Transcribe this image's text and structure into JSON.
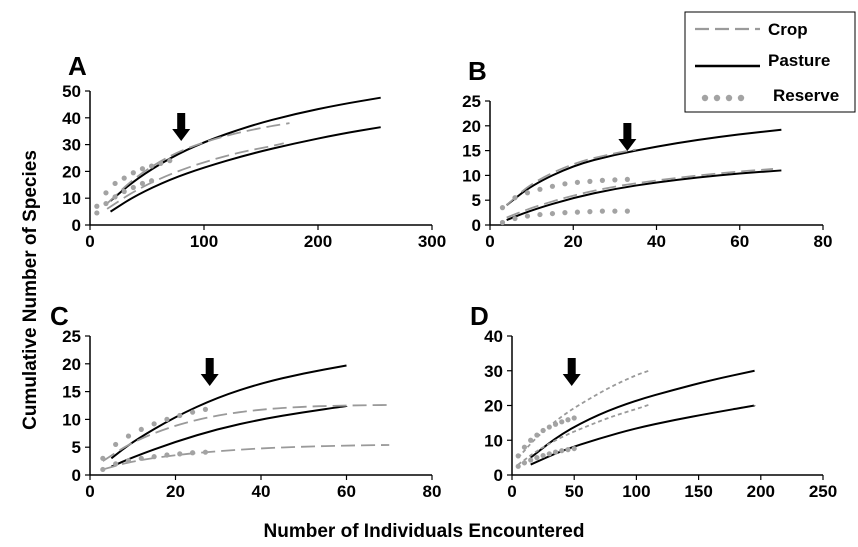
{
  "colors": {
    "crop": "#9a9a9a",
    "pasture": "#000000",
    "reserve": "#a3a3a3",
    "arrow": "#000000"
  },
  "legend": {
    "placement": "top-right",
    "entries": [
      {
        "label": "Crop",
        "style": "dashed"
      },
      {
        "label": "Pasture",
        "style": "solid"
      },
      {
        "label": "Reserve",
        "style": "dotted"
      }
    ]
  },
  "y_axis_label": "Cumulative Number of Species",
  "x_axis_label": "Number of Individuals Encountered",
  "chart_data": [
    {
      "type": "line",
      "panel": "A",
      "xlim": [
        0,
        300
      ],
      "ylim": [
        0,
        50
      ],
      "xticks": [
        0,
        100,
        200,
        300
      ],
      "yticks": [
        0,
        10,
        20,
        30,
        40,
        50
      ],
      "arrow_x": 80,
      "series": [
        {
          "group": "Pasture",
          "x": [
            18,
            40,
            70,
            100,
            140,
            180,
            220,
            255
          ],
          "y": [
            9,
            17,
            25,
            31,
            37,
            41.5,
            45,
            47.5
          ]
        },
        {
          "group": "Pasture",
          "x": [
            18,
            40,
            70,
            100,
            140,
            180,
            220,
            255
          ],
          "y": [
            5,
            11,
            17,
            21.5,
            26.5,
            30.5,
            34,
            36.5
          ]
        },
        {
          "group": "Crop",
          "x": [
            15,
            40,
            70,
            100,
            130,
            160,
            175
          ],
          "y": [
            8,
            18,
            26,
            31,
            34.5,
            37,
            38
          ]
        },
        {
          "group": "Crop",
          "x": [
            15,
            40,
            70,
            100,
            130,
            160,
            170
          ],
          "y": [
            6,
            13,
            19,
            23.5,
            27,
            29.5,
            30.5
          ]
        },
        {
          "group": "Reserve",
          "x": [
            6,
            14,
            22,
            30,
            38,
            46,
            54,
            62,
            70
          ],
          "y": [
            7,
            12,
            15.5,
            17.5,
            19.5,
            21,
            22,
            23,
            24
          ]
        },
        {
          "group": "Reserve",
          "x": [
            6,
            14,
            22,
            30,
            38,
            46,
            54
          ],
          "y": [
            4.5,
            8,
            10.5,
            12.5,
            14,
            15.5,
            16.5
          ]
        }
      ]
    },
    {
      "type": "line",
      "panel": "B",
      "xlim": [
        0,
        80
      ],
      "ylim": [
        0,
        25
      ],
      "xticks": [
        0,
        20,
        40,
        60,
        80
      ],
      "yticks": [
        0,
        5,
        10,
        15,
        20,
        25
      ],
      "arrow_x": 33,
      "series": [
        {
          "group": "Pasture",
          "x": [
            4,
            10,
            20,
            30,
            40,
            50,
            60,
            70
          ],
          "y": [
            4,
            8,
            12,
            14.2,
            15.8,
            17.2,
            18.3,
            19.2
          ]
        },
        {
          "group": "Pasture",
          "x": [
            4,
            10,
            20,
            30,
            40,
            50,
            60,
            70
          ],
          "y": [
            1,
            3,
            5.5,
            7.3,
            8.6,
            9.6,
            10.4,
            11
          ]
        },
        {
          "group": "Crop",
          "x": [
            4,
            10,
            20,
            30,
            35
          ],
          "y": [
            4,
            8.5,
            12.5,
            14.5,
            15.2
          ]
        },
        {
          "group": "Crop",
          "x": [
            4,
            10,
            20,
            30,
            40,
            50,
            60,
            68
          ],
          "y": [
            1.5,
            3.5,
            6,
            7.8,
            9,
            10,
            10.8,
            11.3
          ]
        },
        {
          "group": "Reserve",
          "x": [
            3,
            6,
            9,
            12,
            15,
            18,
            21,
            24,
            27,
            30,
            33
          ],
          "y": [
            3.5,
            5.5,
            6.5,
            7.2,
            7.8,
            8.3,
            8.6,
            8.8,
            9,
            9.1,
            9.2
          ]
        },
        {
          "group": "Reserve",
          "x": [
            3,
            6,
            9,
            12,
            15,
            18,
            21,
            24,
            27,
            30,
            33
          ],
          "y": [
            0.5,
            1.3,
            1.8,
            2.1,
            2.3,
            2.5,
            2.6,
            2.7,
            2.8,
            2.8,
            2.8
          ]
        }
      ]
    },
    {
      "type": "line",
      "panel": "C",
      "xlim": [
        0,
        80
      ],
      "ylim": [
        0,
        25
      ],
      "xticks": [
        0,
        20,
        40,
        60,
        80
      ],
      "yticks": [
        0,
        5,
        10,
        15,
        20,
        25
      ],
      "arrow_x": 28,
      "series": [
        {
          "group": "Pasture",
          "x": [
            5,
            10,
            20,
            30,
            40,
            50,
            60
          ],
          "y": [
            3,
            6,
            10.5,
            14,
            16.5,
            18.3,
            19.7
          ]
        },
        {
          "group": "Pasture",
          "x": [
            5,
            10,
            20,
            30,
            40,
            50,
            60
          ],
          "y": [
            1.5,
            3.2,
            6,
            8.3,
            10,
            11.3,
            12.4
          ]
        },
        {
          "group": "Crop",
          "x": [
            3,
            10,
            20,
            30,
            40,
            50,
            60,
            70
          ],
          "y": [
            2.5,
            6,
            9,
            10.8,
            11.8,
            12.3,
            12.5,
            12.6
          ]
        },
        {
          "group": "Crop",
          "x": [
            3,
            10,
            20,
            30,
            40,
            50,
            60,
            70
          ],
          "y": [
            1,
            2.5,
            3.6,
            4.3,
            4.8,
            5.1,
            5.3,
            5.4
          ]
        },
        {
          "group": "Reserve",
          "x": [
            3,
            6,
            9,
            12,
            15,
            18,
            21,
            24,
            27
          ],
          "y": [
            3,
            5.5,
            7,
            8.2,
            9.2,
            10,
            10.7,
            11.3,
            11.8
          ]
        },
        {
          "group": "Reserve",
          "x": [
            3,
            6,
            9,
            12,
            15,
            18,
            21,
            24,
            27
          ],
          "y": [
            1,
            2,
            2.6,
            3,
            3.3,
            3.6,
            3.8,
            4,
            4.1
          ]
        }
      ]
    },
    {
      "type": "line",
      "panel": "D",
      "xlim": [
        0,
        250
      ],
      "ylim": [
        0,
        40
      ],
      "xticks": [
        0,
        50,
        100,
        150,
        200,
        250
      ],
      "yticks": [
        0,
        10,
        20,
        30,
        40
      ],
      "arrow_x": 48,
      "series": [
        {
          "group": "Pasture",
          "x": [
            15,
            40,
            70,
            100,
            130,
            160,
            195
          ],
          "y": [
            5,
            12,
            17.5,
            21.5,
            24.5,
            27.3,
            30
          ]
        },
        {
          "group": "Pasture",
          "x": [
            15,
            40,
            70,
            100,
            130,
            160,
            195
          ],
          "y": [
            3,
            7,
            10.5,
            13.5,
            15.8,
            17.8,
            20
          ]
        },
        {
          "group": "Crop",
          "x": [
            5,
            20,
            40,
            60,
            80,
            100,
            110
          ],
          "y": [
            5,
            11,
            17,
            21.5,
            25.5,
            28.8,
            30
          ]
        },
        {
          "group": "Crop",
          "x": [
            5,
            20,
            40,
            60,
            80,
            100,
            110
          ],
          "y": [
            3,
            7,
            11,
            14,
            16.8,
            19,
            20.2
          ]
        },
        {
          "group": "Reserve",
          "x": [
            5,
            10,
            15,
            20,
            25,
            30,
            35,
            40,
            45,
            50
          ],
          "y": [
            5.5,
            8,
            10,
            11.5,
            12.8,
            13.8,
            14.6,
            15.3,
            15.9,
            16.4
          ]
        },
        {
          "group": "Reserve",
          "x": [
            5,
            10,
            15,
            20,
            25,
            30,
            35,
            40,
            45,
            50
          ],
          "y": [
            2.5,
            3.5,
            4.3,
            5,
            5.6,
            6.1,
            6.6,
            7,
            7.3,
            7.6
          ]
        }
      ]
    }
  ]
}
